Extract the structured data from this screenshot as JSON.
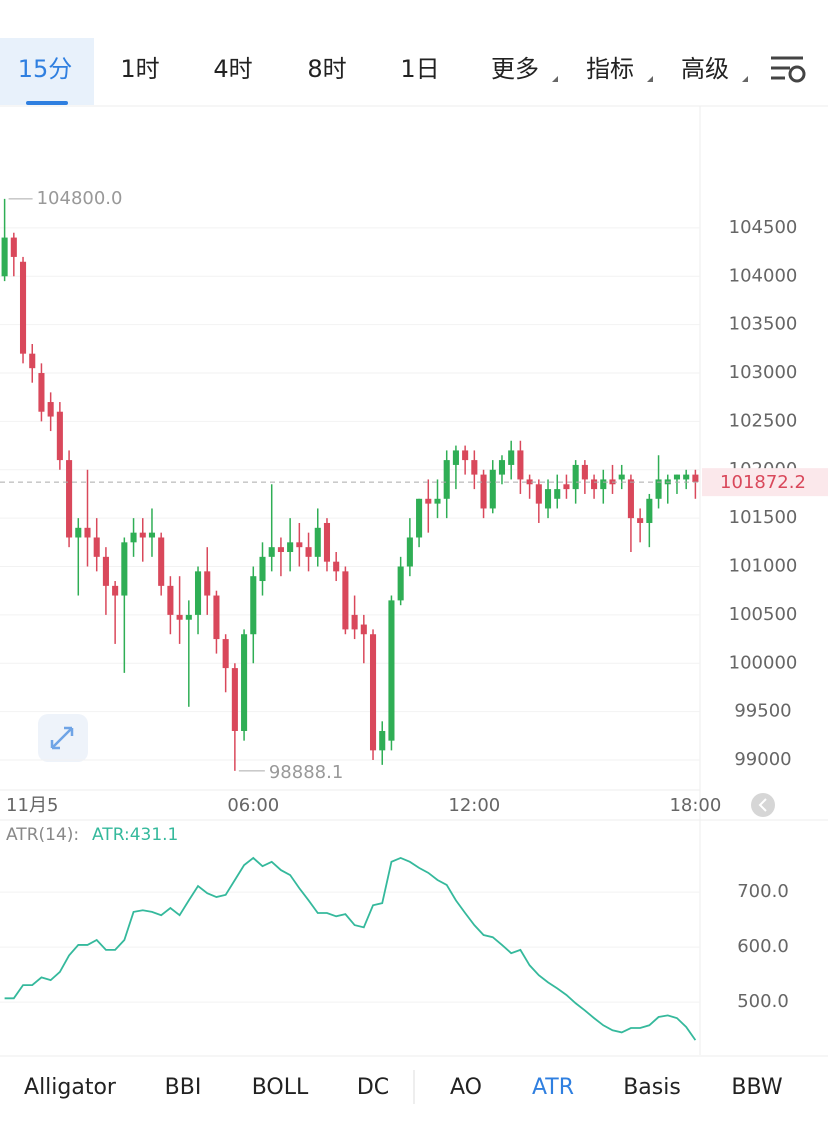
{
  "timeframe_tabs": [
    "15分",
    "1时",
    "4时",
    "8时",
    "1日",
    "更多",
    "指标",
    "高级"
  ],
  "active_timeframe": 0,
  "indicator_tabs": [
    "Alligator",
    "BBI",
    "BOLL",
    "DC",
    "AO",
    "ATR",
    "Basis",
    "BBW"
  ],
  "active_indicator": 5,
  "chart_data": [
    {
      "type": "candlestick",
      "up_color": "#2fae55",
      "down_color": "#d9485b",
      "open": [
        104000,
        104400,
        104150,
        103200,
        103000,
        102700,
        102600,
        102100,
        101300,
        101400,
        101300,
        101100,
        100800,
        100700,
        101250,
        101350,
        101300,
        101300,
        100800,
        100500,
        100450,
        100500,
        100950,
        100700,
        100250,
        99950,
        99300,
        100300,
        100850,
        101100,
        101200,
        101150,
        101250,
        101200,
        101100,
        101450,
        101050,
        100950,
        100500,
        100400,
        100300,
        99100,
        99200,
        100650,
        101000,
        101300,
        101700,
        101650,
        101700,
        102050,
        102200,
        102100,
        101950,
        101600,
        101950,
        102050,
        102200,
        101900,
        101850,
        101600,
        101700,
        101850,
        101800,
        102050,
        101900,
        101800,
        101900,
        101900,
        101900,
        101500,
        101450,
        101700,
        101850,
        101900,
        101900,
        101950
      ],
      "high": [
        104800,
        104450,
        104200,
        103300,
        103100,
        102800,
        102700,
        102200,
        101500,
        102000,
        101500,
        101200,
        100850,
        101300,
        101500,
        101500,
        101600,
        101350,
        100900,
        100900,
        100650,
        101000,
        101200,
        100750,
        100300,
        100000,
        100350,
        101000,
        101250,
        101850,
        101300,
        101500,
        101450,
        101350,
        101600,
        101500,
        101150,
        101000,
        100700,
        100500,
        100350,
        99400,
        100700,
        101100,
        101500,
        101700,
        101900,
        101900,
        102200,
        102250,
        102250,
        102200,
        102000,
        102100,
        102150,
        102300,
        102300,
        101950,
        101900,
        101900,
        101950,
        101950,
        102100,
        102100,
        101950,
        102000,
        102050,
        102050,
        101950,
        101600,
        101750,
        102150,
        101950,
        101950,
        102000,
        102000
      ],
      "low": [
        103950,
        104000,
        103100,
        102900,
        102500,
        102400,
        102000,
        101200,
        100700,
        101000,
        100950,
        100500,
        100200,
        99900,
        101100,
        101050,
        101100,
        100700,
        100300,
        100200,
        99550,
        100300,
        100500,
        100100,
        99700,
        98888.1,
        99200,
        100000,
        100700,
        100950,
        100900,
        100950,
        101000,
        100950,
        101000,
        100950,
        100850,
        100300,
        100250,
        100000,
        99000,
        98950,
        99100,
        100600,
        100900,
        101200,
        101350,
        101500,
        101500,
        101800,
        101950,
        101800,
        101500,
        101550,
        101850,
        101900,
        101750,
        101700,
        101450,
        101500,
        101600,
        101700,
        101650,
        101750,
        101700,
        101650,
        101750,
        101800,
        101150,
        101250,
        101200,
        101600,
        101650,
        101750,
        101800,
        101700
      ],
      "close": [
        104400,
        104200,
        103200,
        103050,
        102600,
        102550,
        102100,
        101300,
        101400,
        101300,
        101100,
        100800,
        100700,
        101250,
        101350,
        101300,
        101350,
        100800,
        100500,
        100450,
        100500,
        100950,
        100700,
        100250,
        99950,
        99300,
        100300,
        100900,
        101100,
        101200,
        101150,
        101250,
        101200,
        101100,
        101400,
        101050,
        100950,
        100350,
        100350,
        100300,
        99100,
        99300,
        100650,
        101000,
        101300,
        101700,
        101650,
        101700,
        102100,
        102200,
        102100,
        101950,
        101600,
        102000,
        102100,
        102200,
        101900,
        101850,
        101650,
        101800,
        101800,
        101800,
        102050,
        101900,
        101800,
        101900,
        101850,
        101950,
        101500,
        101450,
        101700,
        101900,
        101900,
        101950,
        101950,
        101872.2
      ],
      "xlim": [
        -0.5,
        75.5
      ],
      "xticks": [
        {
          "value": 3,
          "label": "11月5"
        },
        {
          "value": 27,
          "label": "06:00"
        },
        {
          "value": 51,
          "label": "12:00"
        },
        {
          "value": 75,
          "label": "18:00"
        }
      ],
      "ylim": [
        98690,
        105760
      ],
      "yticks": [
        99000,
        99500,
        100000,
        100500,
        101000,
        101500,
        102000,
        102500,
        103000,
        103500,
        104000,
        104500
      ],
      "grid": true,
      "last_price": 101872.2,
      "high_marker": {
        "value": 104800,
        "label": "104800.0",
        "index": 0
      },
      "low_marker": {
        "value": 98888.1,
        "index": 25
      }
    },
    {
      "type": "line",
      "title": "ATR(14):",
      "legend": "ATR:431.1",
      "series": [
        {
          "name": "ATR",
          "color": "#35b99c",
          "values": [
            507,
            507,
            531,
            531,
            545,
            540,
            555,
            585,
            604,
            604,
            613,
            595,
            595,
            613,
            664,
            667,
            664,
            658,
            671,
            658,
            685,
            711,
            698,
            691,
            695,
            722,
            749,
            762,
            747,
            755,
            740,
            731,
            707,
            685,
            662,
            662,
            656,
            660,
            640,
            636,
            676,
            680,
            755,
            762,
            755,
            744,
            735,
            722,
            713,
            685,
            662,
            640,
            622,
            618,
            604,
            589,
            595,
            567,
            549,
            536,
            525,
            513,
            498,
            485,
            471,
            458,
            449,
            445,
            453,
            453,
            458,
            473,
            476,
            471,
            455,
            431.1
          ]
        }
      ],
      "xlim": [
        -0.5,
        75.5
      ],
      "ylim": [
        404,
        831
      ],
      "yticks": [
        {
          "value": 500,
          "label": "500.0"
        },
        {
          "value": 600,
          "label": "600.0"
        },
        {
          "value": 700,
          "label": "700.0"
        }
      ],
      "grid": true
    }
  ]
}
